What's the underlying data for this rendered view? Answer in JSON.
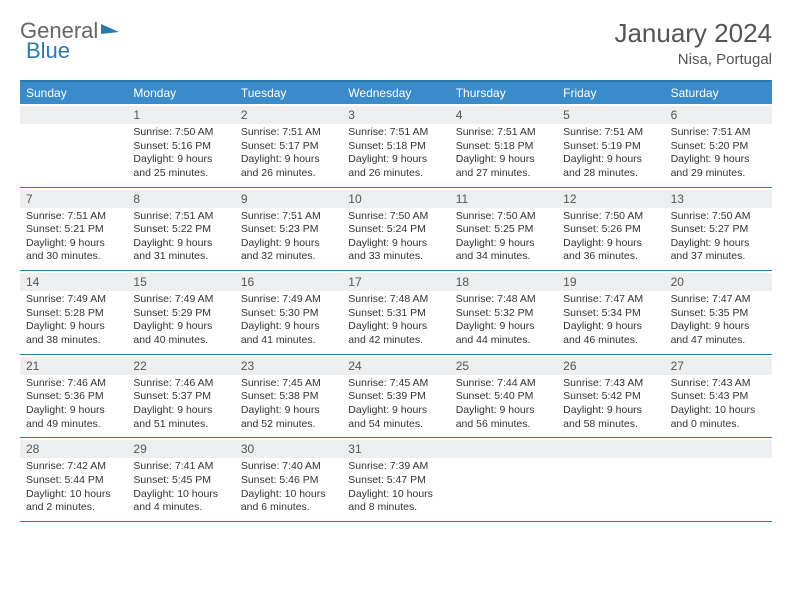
{
  "logo": {
    "part1": "General",
    "part2": "Blue"
  },
  "title": {
    "month": "January 2024",
    "location": "Nisa, Portugal"
  },
  "dayHeaders": [
    "Sunday",
    "Monday",
    "Tuesday",
    "Wednesday",
    "Thursday",
    "Friday",
    "Saturday"
  ],
  "colors": {
    "headerBg": "#3a8bc9",
    "borderTop": "#2a7ab0",
    "dateBg": "#eceeef"
  },
  "weeks": [
    [
      {
        "empty": true
      },
      {
        "date": "1",
        "sunrise": "Sunrise: 7:50 AM",
        "sunset": "Sunset: 5:16 PM",
        "daylight1": "Daylight: 9 hours",
        "daylight2": "and 25 minutes."
      },
      {
        "date": "2",
        "sunrise": "Sunrise: 7:51 AM",
        "sunset": "Sunset: 5:17 PM",
        "daylight1": "Daylight: 9 hours",
        "daylight2": "and 26 minutes."
      },
      {
        "date": "3",
        "sunrise": "Sunrise: 7:51 AM",
        "sunset": "Sunset: 5:18 PM",
        "daylight1": "Daylight: 9 hours",
        "daylight2": "and 26 minutes."
      },
      {
        "date": "4",
        "sunrise": "Sunrise: 7:51 AM",
        "sunset": "Sunset: 5:18 PM",
        "daylight1": "Daylight: 9 hours",
        "daylight2": "and 27 minutes."
      },
      {
        "date": "5",
        "sunrise": "Sunrise: 7:51 AM",
        "sunset": "Sunset: 5:19 PM",
        "daylight1": "Daylight: 9 hours",
        "daylight2": "and 28 minutes."
      },
      {
        "date": "6",
        "sunrise": "Sunrise: 7:51 AM",
        "sunset": "Sunset: 5:20 PM",
        "daylight1": "Daylight: 9 hours",
        "daylight2": "and 29 minutes."
      }
    ],
    [
      {
        "date": "7",
        "sunrise": "Sunrise: 7:51 AM",
        "sunset": "Sunset: 5:21 PM",
        "daylight1": "Daylight: 9 hours",
        "daylight2": "and 30 minutes."
      },
      {
        "date": "8",
        "sunrise": "Sunrise: 7:51 AM",
        "sunset": "Sunset: 5:22 PM",
        "daylight1": "Daylight: 9 hours",
        "daylight2": "and 31 minutes."
      },
      {
        "date": "9",
        "sunrise": "Sunrise: 7:51 AM",
        "sunset": "Sunset: 5:23 PM",
        "daylight1": "Daylight: 9 hours",
        "daylight2": "and 32 minutes."
      },
      {
        "date": "10",
        "sunrise": "Sunrise: 7:50 AM",
        "sunset": "Sunset: 5:24 PM",
        "daylight1": "Daylight: 9 hours",
        "daylight2": "and 33 minutes."
      },
      {
        "date": "11",
        "sunrise": "Sunrise: 7:50 AM",
        "sunset": "Sunset: 5:25 PM",
        "daylight1": "Daylight: 9 hours",
        "daylight2": "and 34 minutes."
      },
      {
        "date": "12",
        "sunrise": "Sunrise: 7:50 AM",
        "sunset": "Sunset: 5:26 PM",
        "daylight1": "Daylight: 9 hours",
        "daylight2": "and 36 minutes."
      },
      {
        "date": "13",
        "sunrise": "Sunrise: 7:50 AM",
        "sunset": "Sunset: 5:27 PM",
        "daylight1": "Daylight: 9 hours",
        "daylight2": "and 37 minutes."
      }
    ],
    [
      {
        "date": "14",
        "sunrise": "Sunrise: 7:49 AM",
        "sunset": "Sunset: 5:28 PM",
        "daylight1": "Daylight: 9 hours",
        "daylight2": "and 38 minutes."
      },
      {
        "date": "15",
        "sunrise": "Sunrise: 7:49 AM",
        "sunset": "Sunset: 5:29 PM",
        "daylight1": "Daylight: 9 hours",
        "daylight2": "and 40 minutes."
      },
      {
        "date": "16",
        "sunrise": "Sunrise: 7:49 AM",
        "sunset": "Sunset: 5:30 PM",
        "daylight1": "Daylight: 9 hours",
        "daylight2": "and 41 minutes."
      },
      {
        "date": "17",
        "sunrise": "Sunrise: 7:48 AM",
        "sunset": "Sunset: 5:31 PM",
        "daylight1": "Daylight: 9 hours",
        "daylight2": "and 42 minutes."
      },
      {
        "date": "18",
        "sunrise": "Sunrise: 7:48 AM",
        "sunset": "Sunset: 5:32 PM",
        "daylight1": "Daylight: 9 hours",
        "daylight2": "and 44 minutes."
      },
      {
        "date": "19",
        "sunrise": "Sunrise: 7:47 AM",
        "sunset": "Sunset: 5:34 PM",
        "daylight1": "Daylight: 9 hours",
        "daylight2": "and 46 minutes."
      },
      {
        "date": "20",
        "sunrise": "Sunrise: 7:47 AM",
        "sunset": "Sunset: 5:35 PM",
        "daylight1": "Daylight: 9 hours",
        "daylight2": "and 47 minutes."
      }
    ],
    [
      {
        "date": "21",
        "sunrise": "Sunrise: 7:46 AM",
        "sunset": "Sunset: 5:36 PM",
        "daylight1": "Daylight: 9 hours",
        "daylight2": "and 49 minutes."
      },
      {
        "date": "22",
        "sunrise": "Sunrise: 7:46 AM",
        "sunset": "Sunset: 5:37 PM",
        "daylight1": "Daylight: 9 hours",
        "daylight2": "and 51 minutes."
      },
      {
        "date": "23",
        "sunrise": "Sunrise: 7:45 AM",
        "sunset": "Sunset: 5:38 PM",
        "daylight1": "Daylight: 9 hours",
        "daylight2": "and 52 minutes."
      },
      {
        "date": "24",
        "sunrise": "Sunrise: 7:45 AM",
        "sunset": "Sunset: 5:39 PM",
        "daylight1": "Daylight: 9 hours",
        "daylight2": "and 54 minutes."
      },
      {
        "date": "25",
        "sunrise": "Sunrise: 7:44 AM",
        "sunset": "Sunset: 5:40 PM",
        "daylight1": "Daylight: 9 hours",
        "daylight2": "and 56 minutes."
      },
      {
        "date": "26",
        "sunrise": "Sunrise: 7:43 AM",
        "sunset": "Sunset: 5:42 PM",
        "daylight1": "Daylight: 9 hours",
        "daylight2": "and 58 minutes."
      },
      {
        "date": "27",
        "sunrise": "Sunrise: 7:43 AM",
        "sunset": "Sunset: 5:43 PM",
        "daylight1": "Daylight: 10 hours",
        "daylight2": "and 0 minutes."
      }
    ],
    [
      {
        "date": "28",
        "sunrise": "Sunrise: 7:42 AM",
        "sunset": "Sunset: 5:44 PM",
        "daylight1": "Daylight: 10 hours",
        "daylight2": "and 2 minutes."
      },
      {
        "date": "29",
        "sunrise": "Sunrise: 7:41 AM",
        "sunset": "Sunset: 5:45 PM",
        "daylight1": "Daylight: 10 hours",
        "daylight2": "and 4 minutes."
      },
      {
        "date": "30",
        "sunrise": "Sunrise: 7:40 AM",
        "sunset": "Sunset: 5:46 PM",
        "daylight1": "Daylight: 10 hours",
        "daylight2": "and 6 minutes."
      },
      {
        "date": "31",
        "sunrise": "Sunrise: 7:39 AM",
        "sunset": "Sunset: 5:47 PM",
        "daylight1": "Daylight: 10 hours",
        "daylight2": "and 8 minutes."
      },
      {
        "empty": true
      },
      {
        "empty": true
      },
      {
        "empty": true
      }
    ]
  ]
}
